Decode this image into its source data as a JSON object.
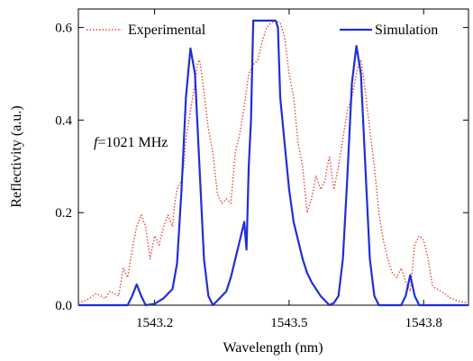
{
  "chart_data": {
    "type": "line",
    "xlabel": "Wavelength (nm)",
    "ylabel": "Reflectivity (a.u.)",
    "xlim": [
      1543.03,
      1543.9
    ],
    "ylim": [
      0,
      0.64
    ],
    "x_ticks": [
      1543.2,
      1543.5,
      1543.8
    ],
    "x_tick_labels": [
      "1543.2",
      "1543.5",
      "1543.8"
    ],
    "y_ticks": [
      0.0,
      0.2,
      0.4,
      0.6
    ],
    "y_tick_labels": [
      "0.0",
      "0.2",
      "0.4",
      "0.6"
    ],
    "grid": false,
    "legend_placement": "top",
    "annotation_italic": "f",
    "annotation_rest": "=1021 MHz",
    "series": [
      {
        "name": "Experimental",
        "color": "#e8463a",
        "style": "dotted",
        "points": [
          [
            1543.03,
            0.005
          ],
          [
            1543.05,
            0.012
          ],
          [
            1543.07,
            0.025
          ],
          [
            1543.09,
            0.015
          ],
          [
            1543.1,
            0.03
          ],
          [
            1543.12,
            0.02
          ],
          [
            1543.13,
            0.08
          ],
          [
            1543.14,
            0.06
          ],
          [
            1543.15,
            0.12
          ],
          [
            1543.16,
            0.17
          ],
          [
            1543.17,
            0.195
          ],
          [
            1543.18,
            0.17
          ],
          [
            1543.19,
            0.1
          ],
          [
            1543.2,
            0.15
          ],
          [
            1543.21,
            0.13
          ],
          [
            1543.22,
            0.17
          ],
          [
            1543.23,
            0.195
          ],
          [
            1543.24,
            0.17
          ],
          [
            1543.245,
            0.22
          ],
          [
            1543.25,
            0.25
          ],
          [
            1543.26,
            0.27
          ],
          [
            1543.265,
            0.3
          ],
          [
            1543.27,
            0.36
          ],
          [
            1543.28,
            0.42
          ],
          [
            1543.29,
            0.48
          ],
          [
            1543.295,
            0.52
          ],
          [
            1543.3,
            0.53
          ],
          [
            1543.305,
            0.5
          ],
          [
            1543.31,
            0.46
          ],
          [
            1543.32,
            0.38
          ],
          [
            1543.33,
            0.33
          ],
          [
            1543.34,
            0.24
          ],
          [
            1543.35,
            0.22
          ],
          [
            1543.36,
            0.23
          ],
          [
            1543.37,
            0.22
          ],
          [
            1543.38,
            0.33
          ],
          [
            1543.39,
            0.37
          ],
          [
            1543.4,
            0.43
          ],
          [
            1543.41,
            0.5
          ],
          [
            1543.42,
            0.52
          ],
          [
            1543.43,
            0.53
          ],
          [
            1543.44,
            0.57
          ],
          [
            1543.45,
            0.6
          ],
          [
            1543.46,
            0.61
          ],
          [
            1543.47,
            0.615
          ],
          [
            1543.48,
            0.61
          ],
          [
            1543.49,
            0.58
          ],
          [
            1543.5,
            0.5
          ],
          [
            1543.51,
            0.45
          ],
          [
            1543.52,
            0.35
          ],
          [
            1543.53,
            0.3
          ],
          [
            1543.54,
            0.2
          ],
          [
            1543.55,
            0.23
          ],
          [
            1543.56,
            0.28
          ],
          [
            1543.57,
            0.25
          ],
          [
            1543.58,
            0.27
          ],
          [
            1543.585,
            0.3
          ],
          [
            1543.59,
            0.32
          ],
          [
            1543.6,
            0.25
          ],
          [
            1543.61,
            0.3
          ],
          [
            1543.62,
            0.36
          ],
          [
            1543.63,
            0.42
          ],
          [
            1543.64,
            0.45
          ],
          [
            1543.65,
            0.5
          ],
          [
            1543.655,
            0.52
          ],
          [
            1543.66,
            0.53
          ],
          [
            1543.665,
            0.5
          ],
          [
            1543.67,
            0.46
          ],
          [
            1543.68,
            0.38
          ],
          [
            1543.69,
            0.3
          ],
          [
            1543.7,
            0.2
          ],
          [
            1543.71,
            0.14
          ],
          [
            1543.72,
            0.1
          ],
          [
            1543.73,
            0.07
          ],
          [
            1543.74,
            0.06
          ],
          [
            1543.75,
            0.08
          ],
          [
            1543.76,
            0.05
          ],
          [
            1543.77,
            0.03
          ],
          [
            1543.78,
            0.13
          ],
          [
            1543.79,
            0.15
          ],
          [
            1543.8,
            0.14
          ],
          [
            1543.81,
            0.1
          ],
          [
            1543.82,
            0.04
          ],
          [
            1543.84,
            0.03
          ],
          [
            1543.86,
            0.015
          ],
          [
            1543.88,
            0.008
          ],
          [
            1543.9,
            0.005
          ]
        ]
      },
      {
        "name": "Simulation",
        "color": "#1f2fd6",
        "style": "solid",
        "points": [
          [
            1543.03,
            0.0
          ],
          [
            1543.14,
            0.0
          ],
          [
            1543.15,
            0.02
          ],
          [
            1543.16,
            0.045
          ],
          [
            1543.17,
            0.02
          ],
          [
            1543.18,
            0.0
          ],
          [
            1543.2,
            0.003
          ],
          [
            1543.22,
            0.015
          ],
          [
            1543.23,
            0.025
          ],
          [
            1543.24,
            0.035
          ],
          [
            1543.25,
            0.09
          ],
          [
            1543.26,
            0.25
          ],
          [
            1543.27,
            0.45
          ],
          [
            1543.28,
            0.555
          ],
          [
            1543.29,
            0.5
          ],
          [
            1543.3,
            0.3
          ],
          [
            1543.31,
            0.1
          ],
          [
            1543.32,
            0.02
          ],
          [
            1543.33,
            0.0
          ],
          [
            1543.34,
            0.01
          ],
          [
            1543.36,
            0.03
          ],
          [
            1543.37,
            0.06
          ],
          [
            1543.38,
            0.1
          ],
          [
            1543.39,
            0.14
          ],
          [
            1543.4,
            0.18
          ],
          [
            1543.405,
            0.12
          ],
          [
            1543.41,
            0.3
          ],
          [
            1543.415,
            0.4
          ],
          [
            1543.42,
            0.615
          ],
          [
            1543.46,
            0.615
          ],
          [
            1543.47,
            0.615
          ],
          [
            1543.475,
            0.6
          ],
          [
            1543.48,
            0.45
          ],
          [
            1543.49,
            0.35
          ],
          [
            1543.5,
            0.25
          ],
          [
            1543.51,
            0.18
          ],
          [
            1543.52,
            0.14
          ],
          [
            1543.53,
            0.1
          ],
          [
            1543.54,
            0.07
          ],
          [
            1543.55,
            0.05
          ],
          [
            1543.56,
            0.035
          ],
          [
            1543.57,
            0.02
          ],
          [
            1543.58,
            0.01
          ],
          [
            1543.59,
            0.0
          ],
          [
            1543.6,
            0.005
          ],
          [
            1543.61,
            0.02
          ],
          [
            1543.62,
            0.1
          ],
          [
            1543.63,
            0.28
          ],
          [
            1543.64,
            0.48
          ],
          [
            1543.65,
            0.56
          ],
          [
            1543.66,
            0.5
          ],
          [
            1543.67,
            0.3
          ],
          [
            1543.68,
            0.1
          ],
          [
            1543.69,
            0.02
          ],
          [
            1543.7,
            0.0
          ],
          [
            1543.75,
            0.0
          ],
          [
            1543.76,
            0.02
          ],
          [
            1543.77,
            0.065
          ],
          [
            1543.78,
            0.02
          ],
          [
            1543.79,
            0.0
          ],
          [
            1543.9,
            0.0
          ]
        ]
      }
    ]
  }
}
